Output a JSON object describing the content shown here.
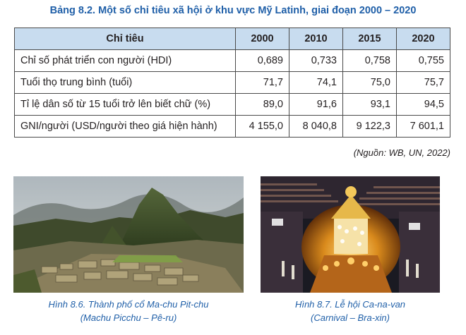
{
  "table": {
    "title": "Bảng 8.2. Một số chỉ tiêu xã hội ở khu vực Mỹ Latinh, giai đoạn 2000 – 2020",
    "headers": [
      "Chỉ tiêu",
      "2000",
      "2010",
      "2015",
      "2020"
    ],
    "rows": [
      {
        "label": "Chỉ số phát triển con người (HDI)",
        "values": [
          "0,689",
          "0,733",
          "0,758",
          "0,755"
        ]
      },
      {
        "label": "Tuổi thọ trung bình (tuổi)",
        "values": [
          "71,7",
          "74,1",
          "75,0",
          "75,7"
        ]
      },
      {
        "label": "Tỉ lệ dân số từ 15 tuổi trở lên biết chữ (%)",
        "values": [
          "89,0",
          "91,6",
          "93,1",
          "94,5"
        ]
      },
      {
        "label": "GNI/người (USD/người theo giá hiện hành)",
        "values": [
          "4 155,0",
          "8 040,8",
          "9 122,3",
          "7 601,1"
        ]
      }
    ],
    "source": "(Nguồn: WB, UN, 2022)",
    "header_color": "#c8dcef",
    "title_color": "#1f5fa8"
  },
  "figures": [
    {
      "caption_line1": "Hình 8.6. Thành phố cổ Ma-chu Pit-chu",
      "caption_line2": "(Machu Picchu – Pê-ru)",
      "image": "mountain-ruins-photo"
    },
    {
      "caption_line1": "Hình 8.7. Lễ hội Ca-na-van",
      "caption_line2": "(Carnival – Bra-xin)",
      "image": "carnival-parade-photo"
    }
  ]
}
